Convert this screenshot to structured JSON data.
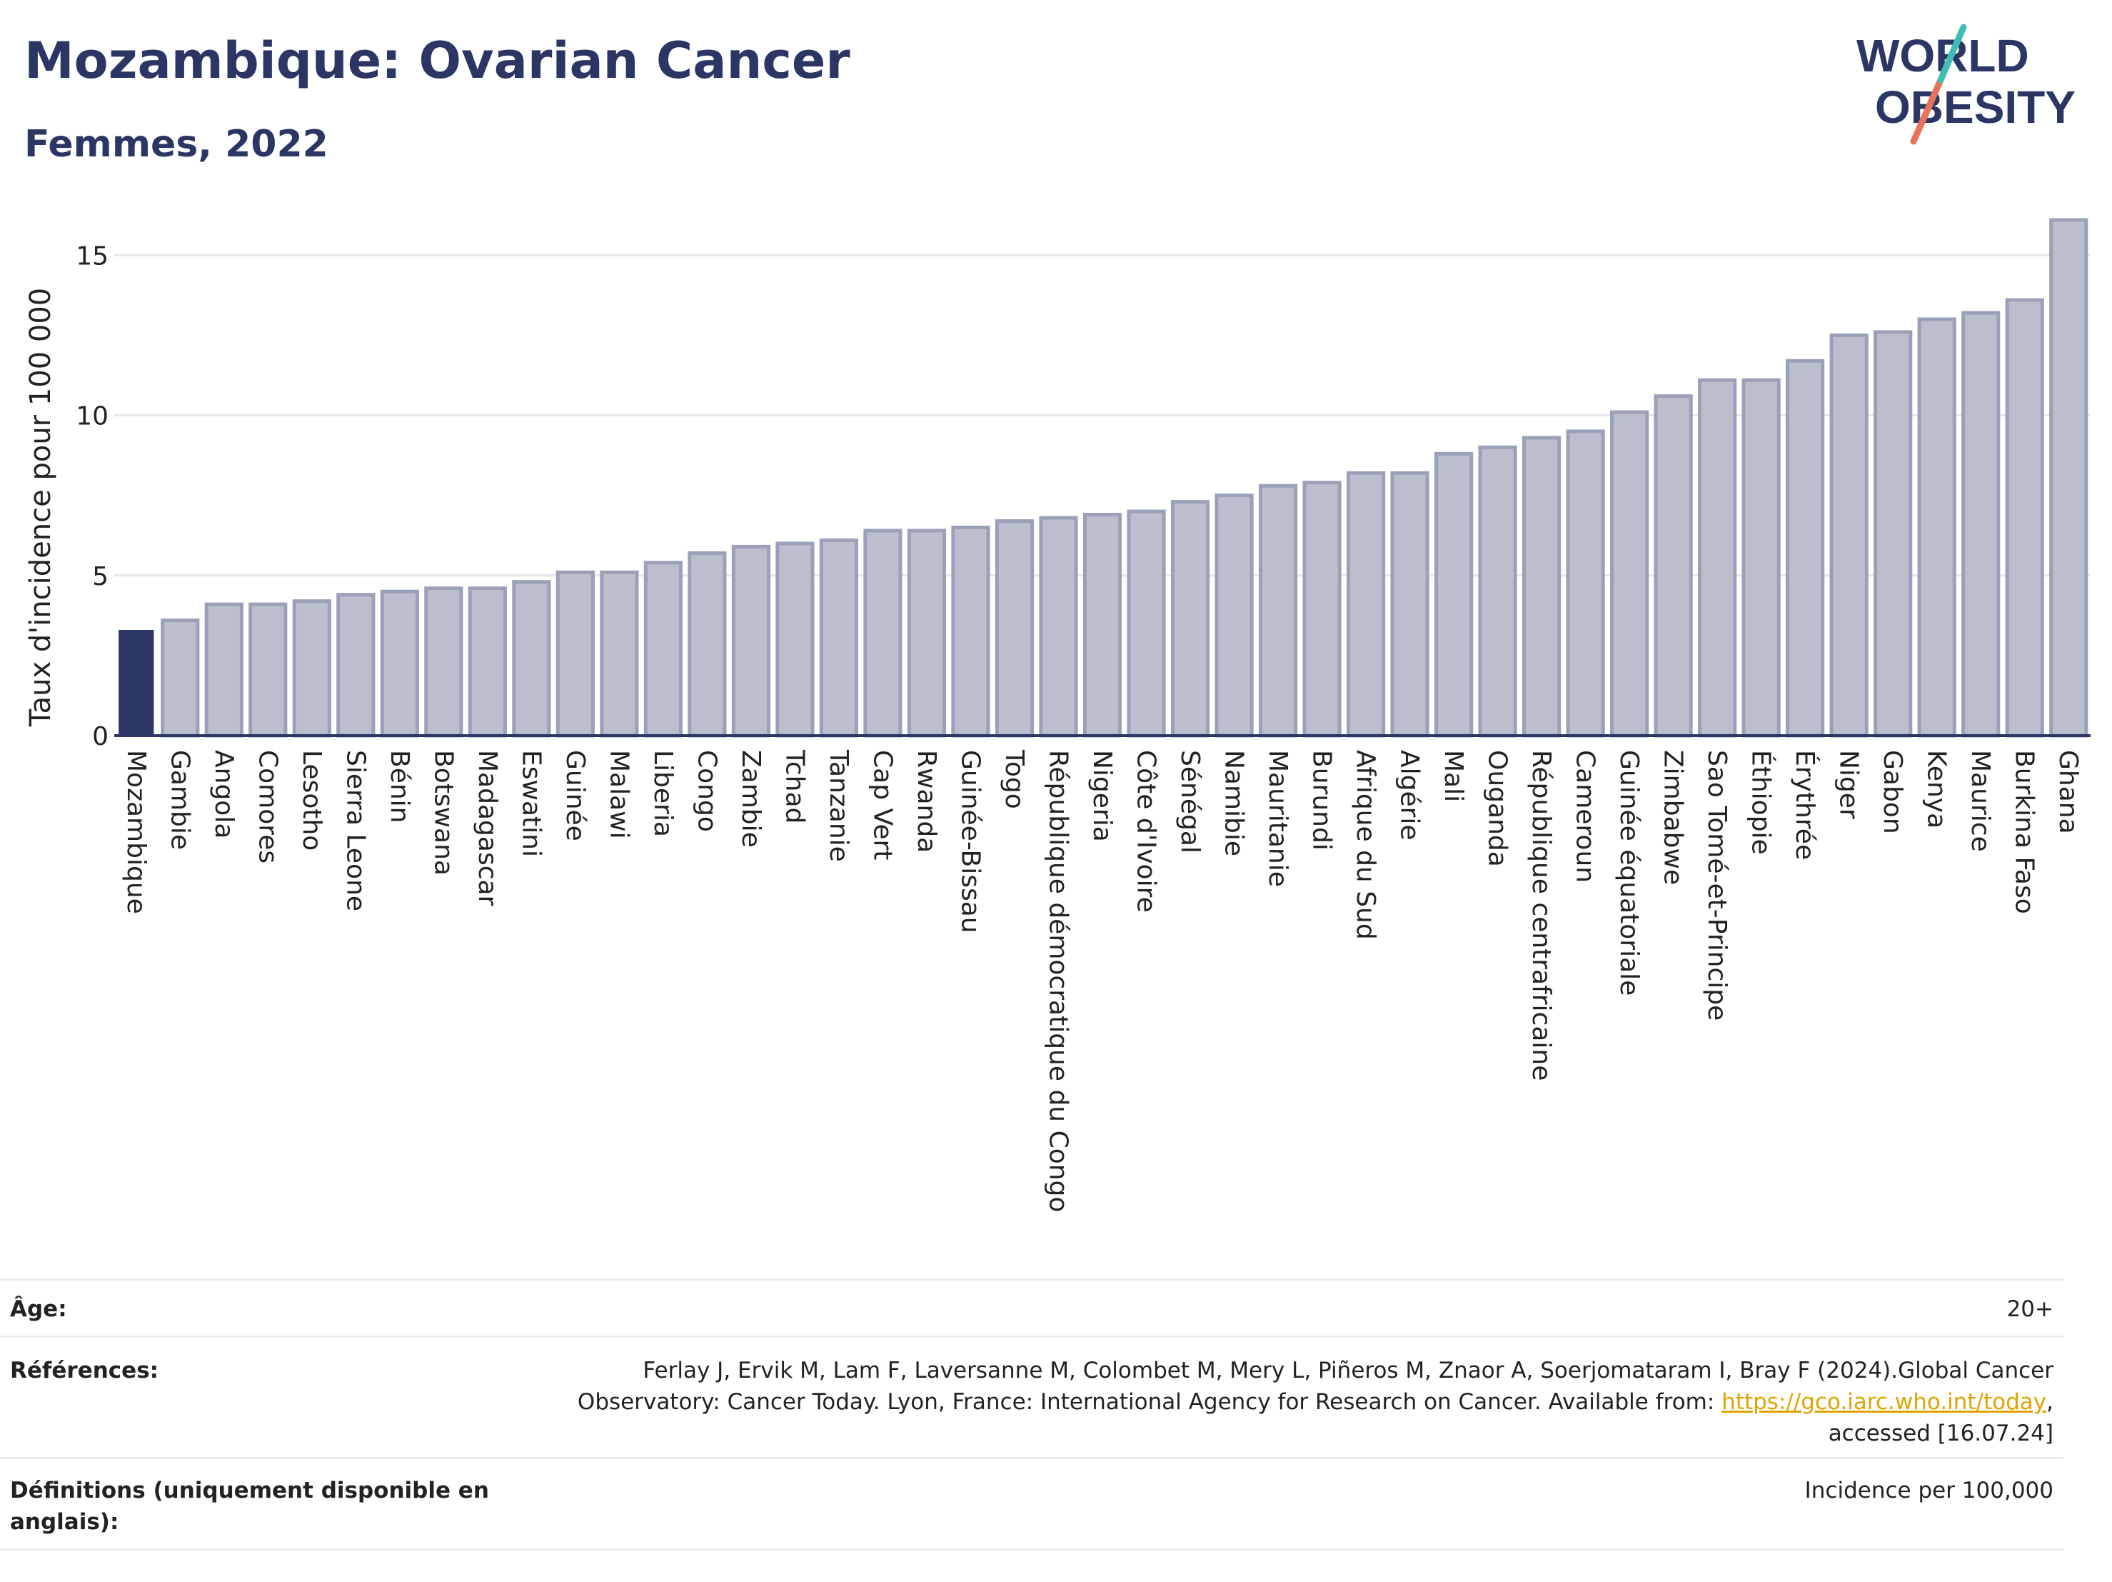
{
  "header": {
    "title": "Mozambique: Ovarian Cancer",
    "subtitle": "Femmes, 2022"
  },
  "logo": {
    "line1": "WORLD",
    "line2": "OBESITY"
  },
  "colors": {
    "highlight_bar": "#2b3664",
    "other_bar_fill": "#bbbfcd",
    "other_bar_stroke": "#9aa0b8",
    "title": "#2b3664",
    "link": "#e0a300"
  },
  "chart_data": {
    "type": "bar",
    "title": "Mozambique: Ovarian Cancer",
    "subtitle": "Femmes, 2022",
    "xlabel": "",
    "ylabel": "Taux d'incidence pour 100 000",
    "ylim": [
      0,
      16.5
    ],
    "yticks": [
      0,
      5,
      10,
      15
    ],
    "grid": true,
    "highlight": "Mozambique",
    "categories": [
      "Mozambique",
      "Gambie",
      "Angola",
      "Comores",
      "Lesotho",
      "Sierra Leone",
      "Bénin",
      "Botswana",
      "Madagascar",
      "Eswatini",
      "Guinée",
      "Malawi",
      "Liberia",
      "Congo",
      "Zambie",
      "Tchad",
      "Tanzanie",
      "Cap Vert",
      "Rwanda",
      "Guinée-Bissau",
      "Togo",
      "République démocratique du Congo",
      "Nigeria",
      "Côte d'Ivoire",
      "Sénégal",
      "Namibie",
      "Mauritanie",
      "Burundi",
      "Afrique du Sud",
      "Algérie",
      "Mali",
      "Ouganda",
      "République centrafricaine",
      "Cameroun",
      "Guinée équatoriale",
      "Zimbabwe",
      "Sao Tomé-et-Principe",
      "Éthiopie",
      "Érythrée",
      "Niger",
      "Gabon",
      "Kenya",
      "Maurice",
      "Burkina Faso",
      "Ghana"
    ],
    "values": [
      3.3,
      3.6,
      4.1,
      4.1,
      4.2,
      4.4,
      4.5,
      4.6,
      4.6,
      4.8,
      5.1,
      5.1,
      5.4,
      5.7,
      5.9,
      6.0,
      6.1,
      6.4,
      6.4,
      6.5,
      6.7,
      6.8,
      6.9,
      7.0,
      7.3,
      7.5,
      7.8,
      7.9,
      8.2,
      8.2,
      8.8,
      9.0,
      9.3,
      9.5,
      10.1,
      10.6,
      11.1,
      11.1,
      11.7,
      12.5,
      12.6,
      13.0,
      13.2,
      13.6,
      16.1
    ]
  },
  "meta": {
    "age_label": "Âge:",
    "age_value": "20+",
    "references_label": "Références:",
    "references_line1": "Ferlay J, Ervik M, Lam F, Laversanne M, Colombet M, Mery L, Piñeros M, Znaor A, Soerjomataram I, Bray F (2024).Global Cancer",
    "references_line2_prefix": "Observatory: Cancer Today. Lyon, France: International Agency for Research on Cancer. Available from: ",
    "references_link": "https://gco.iarc.who.int/today",
    "references_line2_suffix": ",",
    "references_line3": "accessed [16.07.24]",
    "definitions_label_line1": "Définitions (uniquement disponible en",
    "definitions_label_line2": "anglais):",
    "definitions_value": "Incidence per 100,000"
  }
}
